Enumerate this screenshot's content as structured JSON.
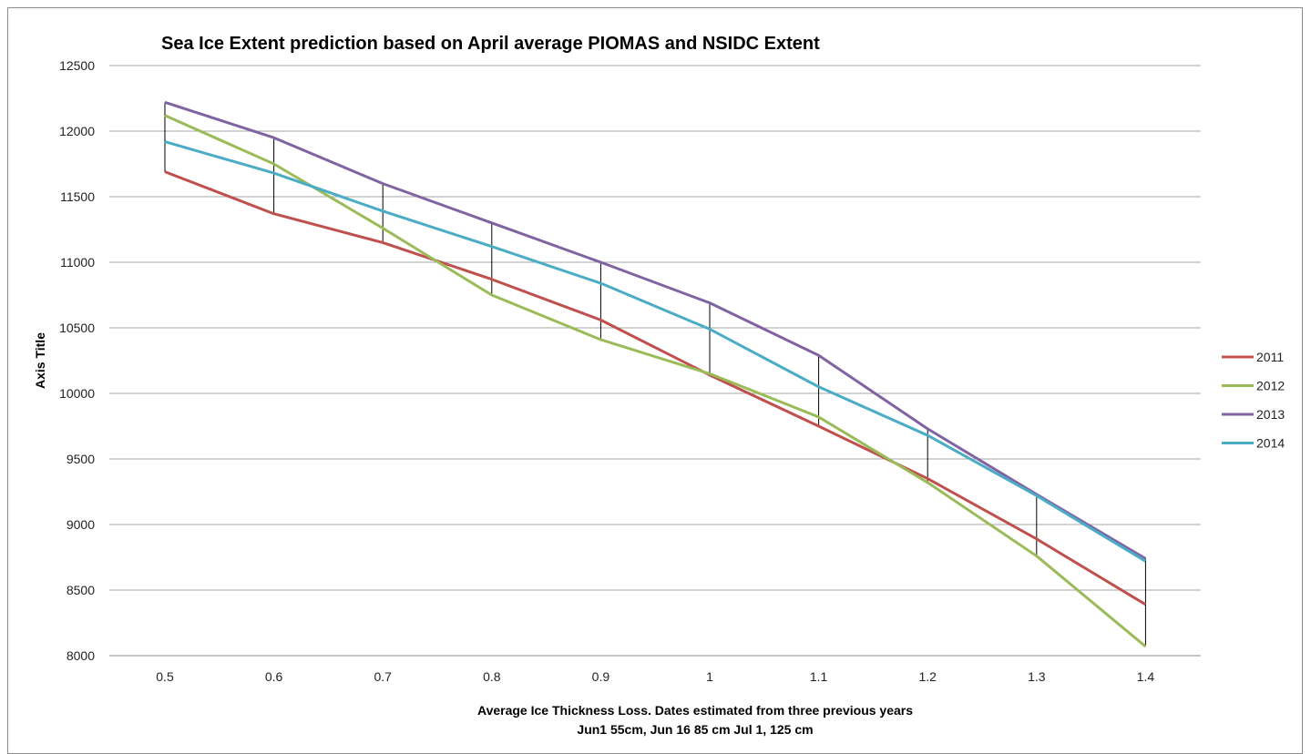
{
  "chart_data": {
    "type": "line",
    "title": "Sea Ice Extent prediction based on April average PIOMAS and NSIDC Extent",
    "xlabel_lines": [
      "Average Ice Thickness Loss.  Dates estimated from three previous years",
      "Jun1 55cm, Jun 16  85 cm Jul 1, 125 cm"
    ],
    "ylabel": "Axis Title",
    "categories": [
      "0.5",
      "0.6",
      "0.7",
      "0.8",
      "0.9",
      "1",
      "1.1",
      "1.2",
      "1.3",
      "1.4"
    ],
    "ylim": [
      8000,
      12500
    ],
    "yticks": [
      8000,
      8500,
      9000,
      9500,
      10000,
      10500,
      11000,
      11500,
      12000,
      12500
    ],
    "grid": true,
    "legend_position": "right",
    "high_low_lines": true,
    "series": [
      {
        "name": "2011",
        "color": "#c0504d",
        "values": [
          11690,
          11370,
          11150,
          10870,
          10560,
          10140,
          9750,
          9350,
          8890,
          8390
        ]
      },
      {
        "name": "2012",
        "color": "#9bbb59",
        "values": [
          12120,
          11750,
          11260,
          10750,
          10410,
          10150,
          9820,
          9320,
          8760,
          8070
        ]
      },
      {
        "name": "2013",
        "color": "#8064a2",
        "values": [
          12220,
          11950,
          11600,
          11300,
          11000,
          10690,
          10290,
          9730,
          9230,
          8740
        ]
      },
      {
        "name": "2014",
        "color": "#4bacc6",
        "values": [
          11920,
          11680,
          11390,
          11120,
          10840,
          10490,
          10050,
          9680,
          9220,
          8720
        ]
      }
    ]
  }
}
